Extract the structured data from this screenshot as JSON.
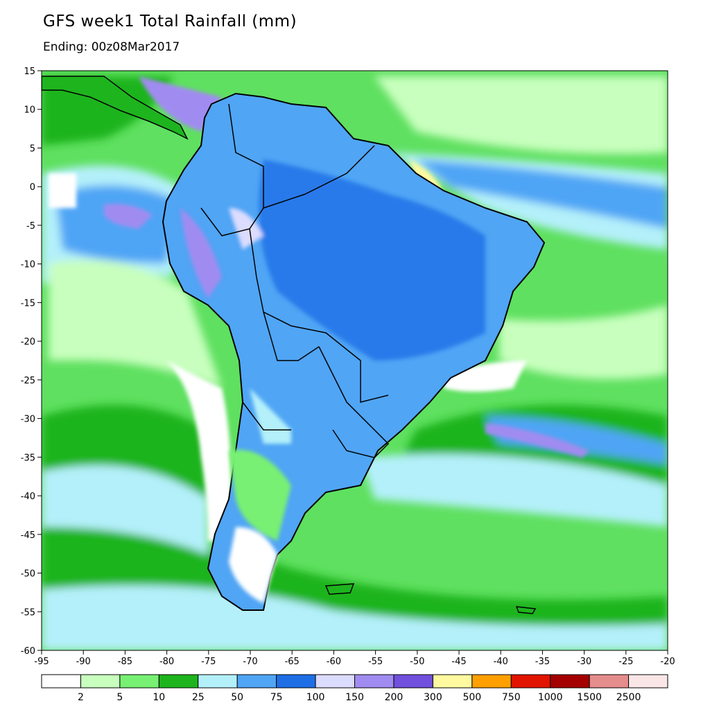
{
  "title": "GFS week1 Total Rainfall (mm)",
  "subtitle": "Ending: 00z08Mar2017",
  "map": {
    "lon_range": [
      -95,
      -20
    ],
    "lat_range": [
      -60,
      15
    ],
    "lon_ticks": [
      "-95",
      "-90",
      "-85",
      "-80",
      "-75",
      "-70",
      "-65",
      "-60",
      "-55",
      "-50",
      "-45",
      "-40",
      "-35",
      "-30",
      "-25",
      "-20"
    ],
    "lat_ticks": [
      "15",
      "10",
      "5",
      "0",
      "-5",
      "-10",
      "-15",
      "-20",
      "-25",
      "-30",
      "-35",
      "-40",
      "-45",
      "-50",
      "-55",
      "-60"
    ],
    "ocean_color": "#64e364",
    "land_outline_color": "#000000"
  },
  "colorbar": {
    "colors": [
      "#ffffff",
      "#c8ffbe",
      "#78f073",
      "#1eb41e",
      "#b4f0fa",
      "#50a5f5",
      "#1e6ee6",
      "#dcdcff",
      "#a08cf0",
      "#7050dc",
      "#fffaa0",
      "#ffa000",
      "#e11400",
      "#a50000",
      "#e58c8c",
      "#fae6e6"
    ],
    "labels": [
      "2",
      "5",
      "10",
      "25",
      "50",
      "75",
      "100",
      "150",
      "200",
      "300",
      "500",
      "750",
      "1000",
      "1500",
      "2500"
    ]
  }
}
